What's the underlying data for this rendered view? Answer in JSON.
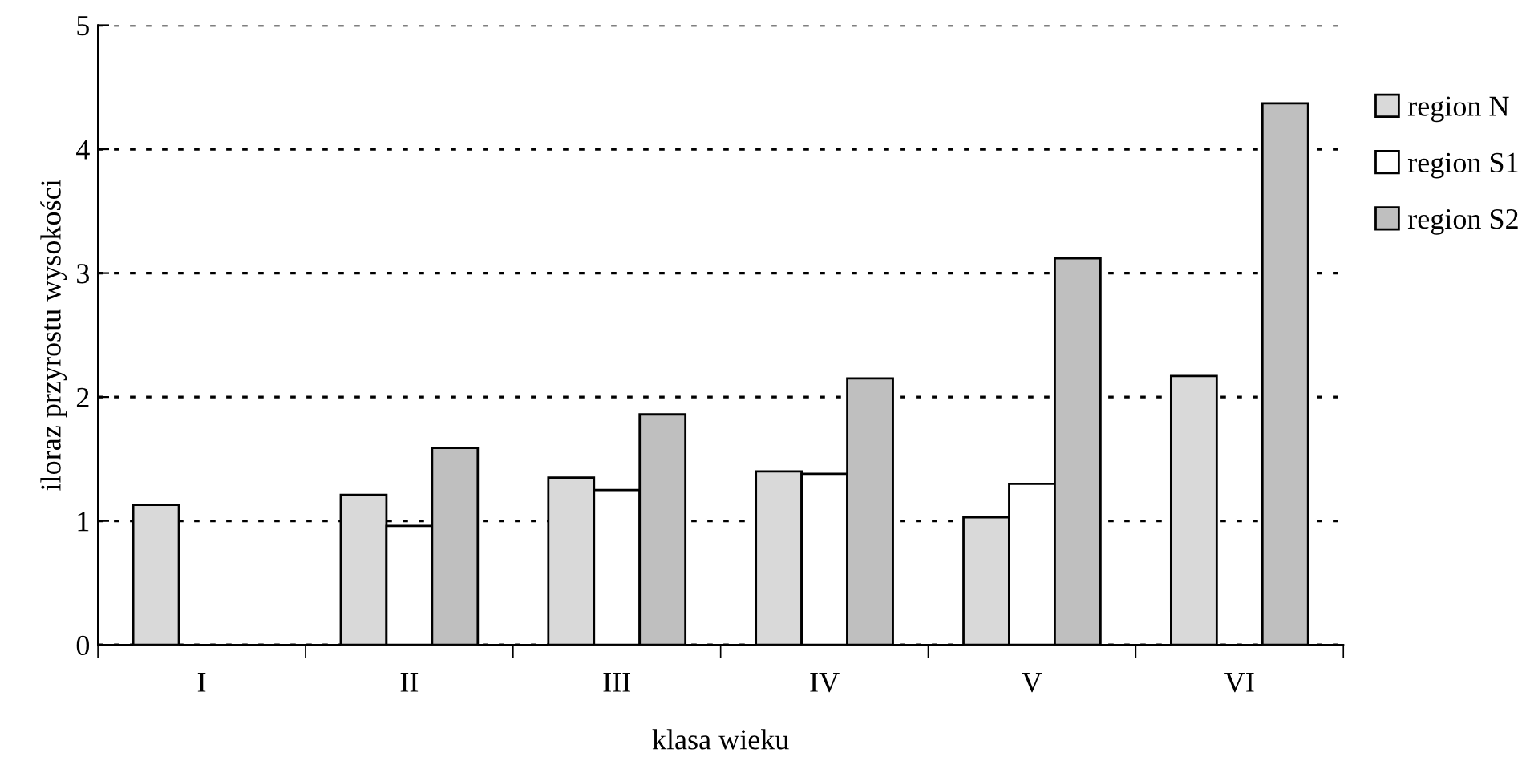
{
  "chart_data": {
    "type": "bar",
    "xlabel": "klasa wieku",
    "ylabel": "iloraz przyrostu wysokości",
    "categories": [
      "I",
      "II",
      "III",
      "IV",
      "V",
      "VI"
    ],
    "series": [
      {
        "name": "region N",
        "color": "#d9d9d9",
        "values": [
          1.13,
          1.21,
          1.35,
          1.4,
          1.03,
          2.17
        ]
      },
      {
        "name": "region S1",
        "color": "#ffffff",
        "values": [
          null,
          0.96,
          1.25,
          1.38,
          1.3,
          null
        ]
      },
      {
        "name": "region S2",
        "color": "#bfbfbf",
        "values": [
          null,
          1.59,
          1.86,
          2.15,
          3.12,
          4.37
        ]
      }
    ],
    "ylim": [
      0,
      5
    ],
    "yticks": [
      0,
      1,
      2,
      3,
      4,
      5
    ],
    "grid": "y",
    "legend": "right"
  }
}
